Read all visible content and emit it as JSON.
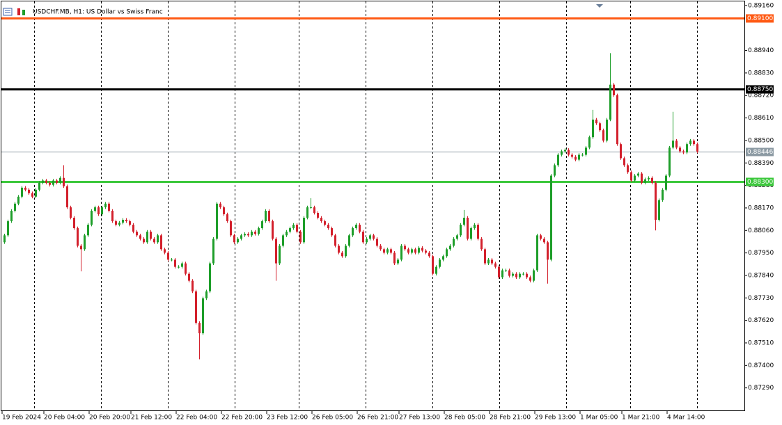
{
  "chart_data": {
    "type": "candlestick",
    "title": "USDCHF.MB, H1:  US Dollar vs Swiss Franc",
    "up_color": "#1e9e2a",
    "down_color": "#d3202c",
    "ylim": [
      0.8718,
      0.8918
    ],
    "yticks": [
      {
        "value": 0.8729,
        "label": "0.87290"
      },
      {
        "value": 0.874,
        "label": "0.87400"
      },
      {
        "value": 0.8751,
        "label": "0.87510"
      },
      {
        "value": 0.8762,
        "label": "0.87620"
      },
      {
        "value": 0.8773,
        "label": "0.87730"
      },
      {
        "value": 0.8784,
        "label": "0.87840"
      },
      {
        "value": 0.8795,
        "label": "0.87950"
      },
      {
        "value": 0.8806,
        "label": "0.88060"
      },
      {
        "value": 0.8817,
        "label": "0.88170"
      },
      {
        "value": 0.8828,
        "label": "0.88280"
      },
      {
        "value": 0.8839,
        "label": "0.88390"
      },
      {
        "value": 0.885,
        "label": "0.88500"
      },
      {
        "value": 0.8861,
        "label": "0.88610"
      },
      {
        "value": 0.8872,
        "label": "0.88720"
      },
      {
        "value": 0.8883,
        "label": "0.88830"
      },
      {
        "value": 0.8894,
        "label": "0.88940"
      },
      {
        "value": 0.8916,
        "label": "0.89160"
      }
    ],
    "xticks": [
      {
        "value": 0,
        "label": "19 Feb 2024"
      },
      {
        "value": 12,
        "label": "20 Feb 04:00"
      },
      {
        "value": 25,
        "label": "20 Feb 20:00"
      },
      {
        "value": 37,
        "label": "21 Feb 12:00"
      },
      {
        "value": 50,
        "label": "22 Feb 04:00"
      },
      {
        "value": 63,
        "label": "22 Feb 20:00"
      },
      {
        "value": 76,
        "label": "23 Feb 12:00"
      },
      {
        "value": 89,
        "label": "26 Feb 05:00"
      },
      {
        "value": 102,
        "label": "26 Feb 21:00"
      },
      {
        "value": 114,
        "label": "27 Feb 13:00"
      },
      {
        "value": 127,
        "label": "28 Feb 05:00"
      },
      {
        "value": 140,
        "label": "28 Feb 21:00"
      },
      {
        "value": 153,
        "label": "29 Feb 13:00"
      },
      {
        "value": 166,
        "label": "1 Mar 05:00"
      },
      {
        "value": 178,
        "label": "1 Mar 21:00"
      },
      {
        "value": 191,
        "label": "4 Mar 14:00"
      }
    ],
    "levels": [
      {
        "value": 0.891,
        "label": "0.89100",
        "color": "#ff5a14"
      },
      {
        "value": 0.8875,
        "label": "0.88750",
        "color": "#000000"
      },
      {
        "value": 0.88446,
        "label": "0.88446",
        "color": "#8c9aa3"
      },
      {
        "value": 0.883,
        "label": "0.88300",
        "color": "#3cc83c"
      }
    ],
    "open": [
      0.88002,
      0.88036,
      0.88105,
      0.88156,
      0.88191,
      0.88225,
      0.88269,
      0.88259,
      0.88242,
      0.88225,
      0.88259,
      0.88293,
      0.88304,
      0.88293,
      0.88283,
      0.88304,
      0.88293,
      0.88317,
      0.88276,
      0.88173,
      0.88122,
      0.88071,
      0.87985,
      0.87968,
      0.88036,
      0.88088,
      0.88156,
      0.88173,
      0.88139,
      0.88173,
      0.88191,
      0.88156,
      0.88105,
      0.88088,
      0.88098,
      0.88112,
      0.88105,
      0.88088,
      0.88054,
      0.88036,
      0.88019,
      0.88002,
      0.88054,
      0.88019,
      0.88002,
      0.88036,
      0.87968,
      0.87951,
      0.87917,
      0.87917,
      0.87882,
      0.87882,
      0.87899,
      0.87848,
      0.87814,
      0.87762,
      0.87608,
      0.87557,
      0.87728,
      0.87762,
      0.87899,
      0.88019,
      0.88191,
      0.88173,
      0.88139,
      0.88105,
      0.88036,
      0.88002,
      0.88019,
      0.88036,
      0.88043,
      0.88036,
      0.88054,
      0.88043,
      0.88071,
      0.88105,
      0.88156,
      0.88105,
      0.88019,
      0.87899,
      0.87985,
      0.88036,
      0.88054,
      0.88071,
      0.88088,
      0.88054,
      0.88002,
      0.88122,
      0.88173,
      0.88173,
      0.88146,
      0.88122,
      0.88105,
      0.88088,
      0.88071,
      0.88036,
      0.87985,
      0.87951,
      0.87934,
      0.87985,
      0.88036,
      0.88071,
      0.88088,
      0.88054,
      0.88002,
      0.88019,
      0.88036,
      0.88019,
      0.87985,
      0.87968,
      0.87951,
      0.87968,
      0.87951,
      0.87899,
      0.87917,
      0.87985,
      0.87968,
      0.87951,
      0.87968,
      0.87951,
      0.87975,
      0.87961,
      0.87951,
      0.87934,
      0.87848,
      0.87882,
      0.87917,
      0.87934,
      0.87968,
      0.87985,
      0.88019,
      0.88036,
      0.88088,
      0.88122,
      0.88019,
      0.88071,
      0.88088,
      0.88019,
      0.87968,
      0.87899,
      0.87917,
      0.87899,
      0.87882,
      0.87831,
      0.87865,
      0.87865,
      0.87838,
      0.87848,
      0.87831,
      0.87848,
      0.87848,
      0.87831,
      0.87814,
      0.87865,
      0.88036,
      0.88019,
      0.88002,
      0.87917,
      0.88328,
      0.88379,
      0.8843,
      0.88447,
      0.88454,
      0.8843,
      0.8842,
      0.88406,
      0.8843,
      0.8843,
      0.88465,
      0.88516,
      0.88602,
      0.88584,
      0.8855,
      0.88499,
      0.88602,
      0.88773,
      0.88721,
      0.88482,
      0.88413,
      0.88379,
      0.88345,
      0.88304,
      0.88328,
      0.88338,
      0.88293,
      0.8831,
      0.88317,
      0.88293,
      0.88112,
      0.88208,
      0.88259,
      0.88328,
      0.88465,
      0.88499,
      0.88465,
      0.88447,
      0.88441,
      0.88482,
      0.88499,
      0.88482
    ],
    "high": [
      0.88044,
      0.88113,
      0.88164,
      0.88199,
      0.88233,
      0.88277,
      0.88277,
      0.88267,
      0.8825,
      0.88267,
      0.88301,
      0.88312,
      0.88312,
      0.88301,
      0.88312,
      0.88312,
      0.88325,
      0.88379,
      0.88284,
      0.88181,
      0.8813,
      0.88079,
      0.87993,
      0.88044,
      0.88096,
      0.88164,
      0.88181,
      0.88181,
      0.88181,
      0.88199,
      0.88199,
      0.88164,
      0.88113,
      0.88106,
      0.8812,
      0.8812,
      0.88113,
      0.88096,
      0.88062,
      0.88044,
      0.88027,
      0.88062,
      0.88062,
      0.88027,
      0.88044,
      0.88044,
      0.87976,
      0.87959,
      0.87925,
      0.87925,
      0.8789,
      0.87907,
      0.87907,
      0.87856,
      0.87822,
      0.8777,
      0.87616,
      0.87736,
      0.8777,
      0.87907,
      0.88027,
      0.88199,
      0.88199,
      0.88181,
      0.88147,
      0.88113,
      0.88044,
      0.88027,
      0.88044,
      0.88051,
      0.88051,
      0.88062,
      0.88062,
      0.88079,
      0.88113,
      0.88164,
      0.88164,
      0.88113,
      0.88027,
      0.87993,
      0.88044,
      0.88062,
      0.88079,
      0.88096,
      0.88096,
      0.88062,
      0.8813,
      0.88181,
      0.88218,
      0.88181,
      0.88154,
      0.8813,
      0.88113,
      0.88096,
      0.88079,
      0.88044,
      0.87993,
      0.87959,
      0.87993,
      0.88044,
      0.88079,
      0.88096,
      0.88096,
      0.88062,
      0.88027,
      0.88044,
      0.88044,
      0.88027,
      0.87993,
      0.87976,
      0.87976,
      0.87976,
      0.87959,
      0.87925,
      0.87993,
      0.87993,
      0.87976,
      0.87976,
      0.87976,
      0.87983,
      0.87983,
      0.87969,
      0.87959,
      0.87942,
      0.8789,
      0.87925,
      0.87942,
      0.87976,
      0.87993,
      0.88027,
      0.88044,
      0.88096,
      0.8816,
      0.8813,
      0.88079,
      0.88096,
      0.88096,
      0.88027,
      0.87976,
      0.87925,
      0.87925,
      0.87907,
      0.8789,
      0.87873,
      0.87873,
      0.87873,
      0.87856,
      0.87856,
      0.87856,
      0.87856,
      0.87856,
      0.87839,
      0.87873,
      0.88044,
      0.88044,
      0.88027,
      0.8801,
      0.88336,
      0.88387,
      0.88438,
      0.88455,
      0.88462,
      0.88462,
      0.88438,
      0.88428,
      0.88438,
      0.88438,
      0.88473,
      0.88524,
      0.8865,
      0.8861,
      0.88592,
      0.88558,
      0.8861,
      0.88927,
      0.88781,
      0.88729,
      0.8849,
      0.88421,
      0.88387,
      0.88353,
      0.88336,
      0.88346,
      0.88346,
      0.88318,
      0.88325,
      0.88325,
      0.88301,
      0.88216,
      0.88267,
      0.88336,
      0.88473,
      0.8864,
      0.88507,
      0.88473,
      0.88455,
      0.8849,
      0.88507,
      0.88507,
      0.8849
    ],
    "low": [
      0.87994,
      0.88028,
      0.88097,
      0.88148,
      0.88183,
      0.88217,
      0.88251,
      0.88234,
      0.88217,
      0.88217,
      0.88251,
      0.88285,
      0.88285,
      0.88275,
      0.88275,
      0.88285,
      0.88285,
      0.88268,
      0.88165,
      0.88114,
      0.88063,
      0.87977,
      0.8786,
      0.8796,
      0.88028,
      0.8808,
      0.88148,
      0.88131,
      0.88131,
      0.88165,
      0.88148,
      0.88097,
      0.8808,
      0.8808,
      0.8809,
      0.88097,
      0.8808,
      0.88046,
      0.88028,
      0.88011,
      0.87994,
      0.87994,
      0.88011,
      0.87994,
      0.87994,
      0.8796,
      0.87943,
      0.87909,
      0.87909,
      0.87874,
      0.87874,
      0.87874,
      0.8784,
      0.87806,
      0.87754,
      0.876,
      0.8743,
      0.87549,
      0.8772,
      0.87754,
      0.87891,
      0.88011,
      0.88165,
      0.88131,
      0.88097,
      0.88028,
      0.87994,
      0.87994,
      0.88011,
      0.88028,
      0.88028,
      0.88028,
      0.88035,
      0.88035,
      0.88063,
      0.88097,
      0.88097,
      0.88011,
      0.87814,
      0.87891,
      0.87977,
      0.88028,
      0.88046,
      0.88063,
      0.88046,
      0.87994,
      0.87994,
      0.88114,
      0.88165,
      0.88138,
      0.88114,
      0.88097,
      0.8808,
      0.88063,
      0.88028,
      0.87977,
      0.87943,
      0.87926,
      0.87926,
      0.87977,
      0.88028,
      0.88063,
      0.88046,
      0.87994,
      0.87994,
      0.88011,
      0.88011,
      0.87977,
      0.8796,
      0.87943,
      0.87943,
      0.87943,
      0.87891,
      0.87891,
      0.87909,
      0.8796,
      0.87943,
      0.87943,
      0.87943,
      0.87943,
      0.87953,
      0.87943,
      0.87926,
      0.8784,
      0.8784,
      0.87874,
      0.87909,
      0.87926,
      0.8796,
      0.87977,
      0.88011,
      0.88028,
      0.8808,
      0.88011,
      0.88011,
      0.88063,
      0.88011,
      0.8796,
      0.87891,
      0.87891,
      0.87891,
      0.87874,
      0.87823,
      0.87823,
      0.87857,
      0.8783,
      0.8783,
      0.87823,
      0.87823,
      0.8784,
      0.87823,
      0.87806,
      0.87806,
      0.87857,
      0.88011,
      0.87994,
      0.878,
      0.87909,
      0.8832,
      0.88371,
      0.88422,
      0.88439,
      0.88422,
      0.88412,
      0.88398,
      0.88398,
      0.88422,
      0.88422,
      0.88457,
      0.88508,
      0.88576,
      0.88542,
      0.88491,
      0.88491,
      0.88594,
      0.88713,
      0.88474,
      0.88405,
      0.88371,
      0.88337,
      0.88296,
      0.88296,
      0.8832,
      0.88285,
      0.88285,
      0.88302,
      0.88285,
      0.8806,
      0.88104,
      0.882,
      0.88251,
      0.8832,
      0.88457,
      0.88457,
      0.88439,
      0.88433,
      0.88433,
      0.88474,
      0.88474,
      0.88438
    ],
    "close": [
      0.88036,
      0.88105,
      0.88156,
      0.88191,
      0.88225,
      0.88269,
      0.88259,
      0.88242,
      0.88225,
      0.88259,
      0.88293,
      0.88304,
      0.88293,
      0.88283,
      0.88304,
      0.88293,
      0.88317,
      0.88276,
      0.88173,
      0.88122,
      0.88071,
      0.87985,
      0.87968,
      0.88036,
      0.88088,
      0.88156,
      0.88173,
      0.88139,
      0.88173,
      0.88191,
      0.88156,
      0.88105,
      0.88088,
      0.88098,
      0.88112,
      0.88105,
      0.88088,
      0.88054,
      0.88036,
      0.88019,
      0.88002,
      0.88054,
      0.88019,
      0.88002,
      0.88036,
      0.87968,
      0.87951,
      0.87917,
      0.87917,
      0.87882,
      0.87882,
      0.87899,
      0.87848,
      0.87814,
      0.87762,
      0.87608,
      0.87557,
      0.87728,
      0.87762,
      0.87899,
      0.88019,
      0.88191,
      0.88173,
      0.88139,
      0.88105,
      0.88036,
      0.88002,
      0.88019,
      0.88036,
      0.88043,
      0.88036,
      0.88054,
      0.88043,
      0.88071,
      0.88105,
      0.88156,
      0.88105,
      0.88019,
      0.87899,
      0.87985,
      0.88036,
      0.88054,
      0.88071,
      0.88088,
      0.88054,
      0.88002,
      0.88122,
      0.88173,
      0.88173,
      0.88146,
      0.88122,
      0.88105,
      0.88088,
      0.88071,
      0.88036,
      0.87985,
      0.87951,
      0.87934,
      0.87985,
      0.88036,
      0.88071,
      0.88088,
      0.88054,
      0.88002,
      0.88019,
      0.88036,
      0.88019,
      0.87985,
      0.87968,
      0.87951,
      0.87968,
      0.87951,
      0.87899,
      0.87917,
      0.87985,
      0.87968,
      0.87951,
      0.87968,
      0.87951,
      0.87975,
      0.87961,
      0.87951,
      0.87934,
      0.87848,
      0.87882,
      0.87917,
      0.87934,
      0.87968,
      0.87985,
      0.88019,
      0.88036,
      0.88088,
      0.88122,
      0.88019,
      0.88071,
      0.88088,
      0.88019,
      0.87968,
      0.87899,
      0.87917,
      0.87899,
      0.87882,
      0.87831,
      0.87865,
      0.87865,
      0.87838,
      0.87848,
      0.87831,
      0.87848,
      0.87848,
      0.87831,
      0.87814,
      0.87865,
      0.88036,
      0.88019,
      0.88002,
      0.87917,
      0.88328,
      0.88379,
      0.8843,
      0.88447,
      0.88454,
      0.8843,
      0.8842,
      0.88406,
      0.8843,
      0.8843,
      0.88465,
      0.88516,
      0.88602,
      0.88584,
      0.8855,
      0.88499,
      0.88602,
      0.88773,
      0.88721,
      0.88482,
      0.88413,
      0.88379,
      0.88345,
      0.88304,
      0.88328,
      0.88338,
      0.88293,
      0.8831,
      0.88317,
      0.88293,
      0.88112,
      0.88208,
      0.88259,
      0.88328,
      0.88465,
      0.88499,
      0.88465,
      0.88447,
      0.88441,
      0.88482,
      0.88499,
      0.88482,
      0.88446
    ]
  }
}
